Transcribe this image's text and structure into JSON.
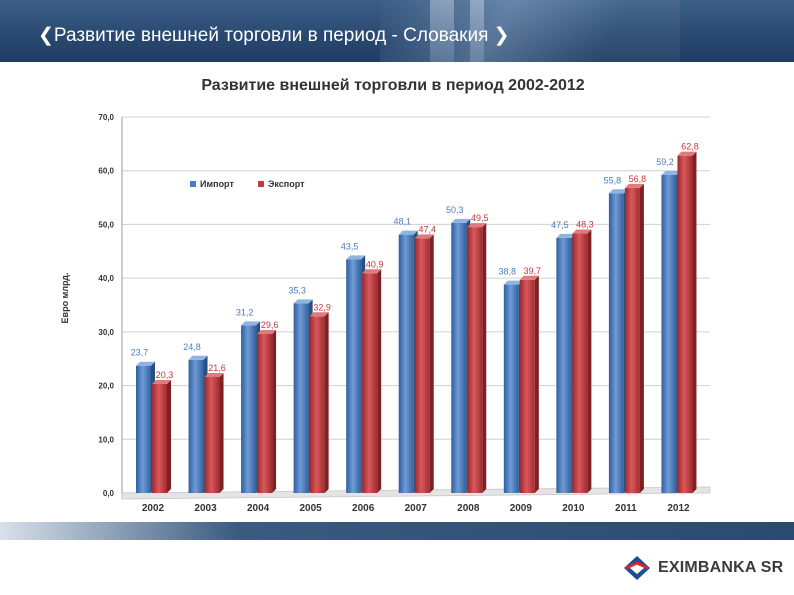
{
  "header": {
    "title": "❮Развитие внешней торговли в период - Словакия ❯"
  },
  "logo": {
    "text": "EXIMBANKA SR"
  },
  "chart_data": {
    "type": "bar",
    "title": "Развитие внешней торговли в период 2002-2012",
    "ylabel": "Евро млрд.",
    "ylim": [
      0,
      70
    ],
    "yticks": [
      "0,0",
      "10,0",
      "20,0",
      "30,0",
      "40,0",
      "50,0",
      "60,0",
      "70,0"
    ],
    "categories": [
      "2002",
      "2003",
      "2004",
      "2005",
      "2006",
      "2007",
      "2008",
      "2009",
      "2010",
      "2011",
      "2012"
    ],
    "series": [
      {
        "name": "Импорт",
        "color": "#4a7cc0",
        "values": [
          23.7,
          24.8,
          31.2,
          35.3,
          43.5,
          48.1,
          50.3,
          38.8,
          47.5,
          55.8,
          59.2
        ],
        "labels": [
          "23,7",
          "24,8",
          "31,2",
          "35,3",
          "43,5",
          "48,1",
          "50,3",
          "38,8",
          "47,5",
          "55,8",
          "59,2"
        ]
      },
      {
        "name": "Экспорт",
        "color": "#c0393d",
        "values": [
          20.3,
          21.6,
          29.6,
          32.9,
          40.9,
          47.4,
          49.5,
          39.7,
          48.3,
          56.8,
          62.8
        ],
        "labels": [
          "20,3",
          "21,6",
          "29,6",
          "32,9",
          "40,9",
          "47,4",
          "49,5",
          "39,7",
          "48,3",
          "56,8",
          "62,8"
        ]
      }
    ],
    "grid": true,
    "legend": "upper-left"
  }
}
